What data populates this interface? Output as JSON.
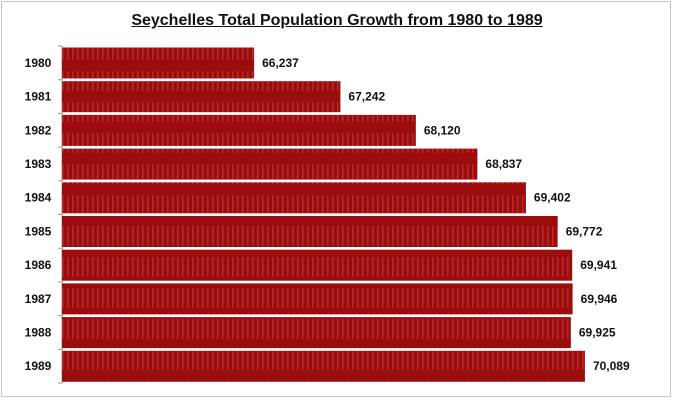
{
  "chart_data": {
    "type": "bar",
    "orientation": "horizontal",
    "title": "Seychelles Total Population Growth from 1980 to 1989",
    "xlabel": "",
    "ylabel": "",
    "categories": [
      "1980",
      "1981",
      "1982",
      "1983",
      "1984",
      "1985",
      "1986",
      "1987",
      "1988",
      "1989"
    ],
    "values": [
      66237,
      67242,
      68120,
      68837,
      69402,
      69772,
      69941,
      69946,
      69925,
      70089
    ],
    "data_labels": [
      "66,237",
      "67,242",
      "68,120",
      "68,837",
      "69,402",
      "69,772",
      "69,941",
      "69,946",
      "69,925",
      "70,089"
    ],
    "xlim": [
      64000,
      70800
    ],
    "grid": false,
    "legend": "none",
    "bar_color": "#9b0d0d"
  }
}
